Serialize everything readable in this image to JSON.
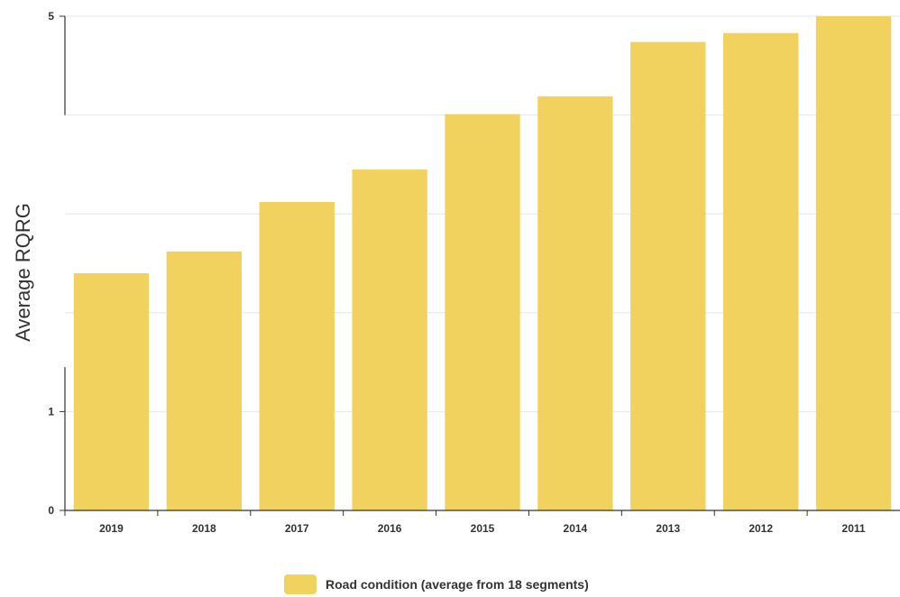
{
  "chart_data": {
    "type": "bar",
    "title": "",
    "xlabel": "",
    "ylabel": "Average RQRG",
    "categories": [
      "2019",
      "2018",
      "2017",
      "2016",
      "2015",
      "2014",
      "2013",
      "2012",
      "2011"
    ],
    "series": [
      {
        "name": "Road condition (average from 18 segments)",
        "values": [
          2.4,
          2.62,
          3.12,
          3.45,
          4.01,
          4.19,
          4.74,
          4.83,
          5.0
        ]
      }
    ],
    "ylim": [
      0,
      5
    ],
    "yticks": [
      {
        "value": 0,
        "label": "0"
      },
      {
        "value": 1,
        "label": "1"
      },
      {
        "value": 5,
        "label": "5"
      }
    ],
    "gridlines": [
      1,
      2,
      3,
      4,
      5
    ],
    "grid": true,
    "legend": {
      "position": "bottom-center"
    },
    "colors": {
      "bar": "#f2d25f",
      "grid": "#e6e6e6",
      "axis": "#333333"
    }
  }
}
